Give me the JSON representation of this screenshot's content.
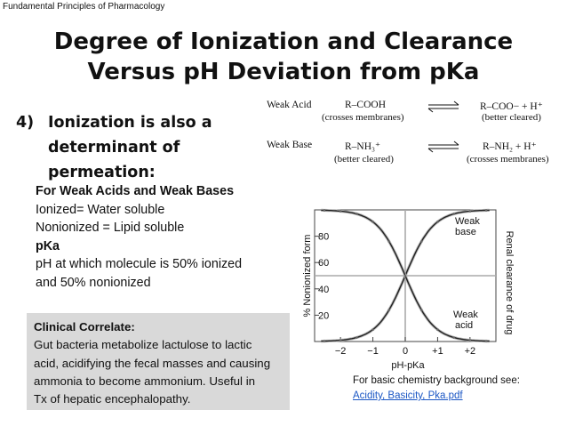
{
  "header": {
    "source": "Fundamental Principles of Pharmacology"
  },
  "title": {
    "line1": "Degree of Ionization and Clearance",
    "line2": "Versus pH Deviation from pKa"
  },
  "point": {
    "number": "4)",
    "line1": "Ionization  is also a",
    "line2": "determinant of permeation:"
  },
  "equations": {
    "weak_acid": {
      "label": "Weak Acid",
      "left": "R–COOH",
      "left_note": "(crosses membranes)",
      "right": "R–COO− + H⁺",
      "right_note": "(better cleared)"
    },
    "weak_base": {
      "label": "Weak Base",
      "left": "R–NH₃⁺",
      "left_note": "(better cleared)",
      "right": "R–NH₂ + H⁺",
      "right_note": "(crosses membranes)"
    }
  },
  "body": {
    "heading": "For Weak Acids and Weak Bases",
    "line1": "Ionized= Water soluble",
    "line2": "Nonionized = Lipid soluble",
    "pka_heading": "pKa",
    "pka_line1": "pH at which molecule is 50% ionized",
    "pka_line2": "and 50% nonionized"
  },
  "clinical": {
    "heading": "Clinical Correlate:",
    "line1": "Gut bacteria metabolize lactulose to lactic",
    "line2": "acid, acidifying the fecal masses and causing",
    "line3": "ammonia to become ammonium. Useful in",
    "line4": "Tx of hepatic encephalopathy."
  },
  "chart_data": {
    "type": "line",
    "xlabel": "pH-pKa",
    "ylabel": "% Nonionized form",
    "ylabel_right": "Renal clearance of drug",
    "xlim": [
      -2.8,
      2.8
    ],
    "ylim": [
      0,
      100
    ],
    "x_ticks": [
      -2,
      -1,
      0,
      1,
      2
    ],
    "x_tick_labels": [
      "−2",
      "−1",
      "0",
      "+1",
      "+2"
    ],
    "y_ticks": [
      20,
      40,
      60,
      80
    ],
    "y_tick_labels": [
      "20",
      "40",
      "60",
      "80"
    ],
    "reference_lines": {
      "x": 0,
      "y": 50
    },
    "series": [
      {
        "name": "Weak base",
        "label_line1": "Weak",
        "label_line2": "base",
        "curve": "increasing",
        "x": [
          -2.5,
          -2,
          -1.5,
          -1,
          -0.5,
          0,
          0.5,
          1,
          1.5,
          2,
          2.5
        ],
        "values": [
          0.3,
          1,
          3,
          9,
          24,
          50,
          76,
          91,
          97,
          99,
          99.7
        ]
      },
      {
        "name": "Weak acid",
        "label_line1": "Weak",
        "label_line2": "acid",
        "curve": "decreasing",
        "x": [
          -2.5,
          -2,
          -1.5,
          -1,
          -0.5,
          0,
          0.5,
          1,
          1.5,
          2,
          2.5
        ],
        "values": [
          99.7,
          99,
          97,
          91,
          76,
          50,
          24,
          9,
          3,
          1,
          0.3
        ]
      }
    ],
    "grid": false
  },
  "note": {
    "text": "For basic  chemistry background see:",
    "link": "Acidity, Basicity, Pka.pdf"
  }
}
